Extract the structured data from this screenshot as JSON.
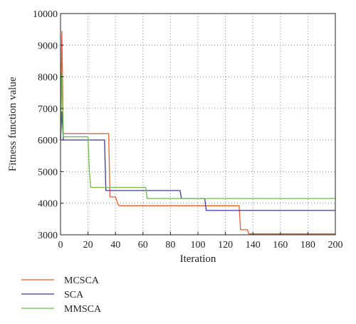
{
  "chart_data": {
    "type": "line",
    "xlabel": "Iteration",
    "ylabel": "Fitness function value",
    "xlim": [
      0,
      200
    ],
    "ylim": [
      3000,
      10000
    ],
    "xticks": [
      0,
      20,
      40,
      60,
      80,
      100,
      120,
      140,
      160,
      180,
      200
    ],
    "yticks": [
      3000,
      4000,
      5000,
      6000,
      7000,
      8000,
      9000,
      10000
    ],
    "grid": true,
    "legend_position": "bottom-left",
    "line_shape": "step",
    "series": [
      {
        "name": "MCSCA",
        "color": "#e8612c",
        "x": [
          0,
          1,
          2,
          35,
          36,
          40,
          42,
          43,
          130,
          131,
          136,
          137,
          200
        ],
        "y": [
          6000,
          9450,
          6200,
          6200,
          4200,
          4200,
          3950,
          3920,
          3920,
          3160,
          3160,
          3030,
          3030
        ]
      },
      {
        "name": "SCA",
        "color": "#3c3a99",
        "x": [
          0,
          1,
          2,
          32,
          33,
          87,
          88,
          105,
          106,
          200
        ],
        "y": [
          6000,
          6900,
          6000,
          6000,
          4400,
          4400,
          4150,
          4150,
          3770,
          3770
        ]
      },
      {
        "name": "MMSCA",
        "color": "#6cbf4a",
        "x": [
          0,
          1,
          2,
          20,
          21,
          22,
          62,
          63,
          200
        ],
        "y": [
          6000,
          8100,
          6100,
          6100,
          5000,
          4500,
          4500,
          4150,
          4150
        ]
      }
    ]
  }
}
